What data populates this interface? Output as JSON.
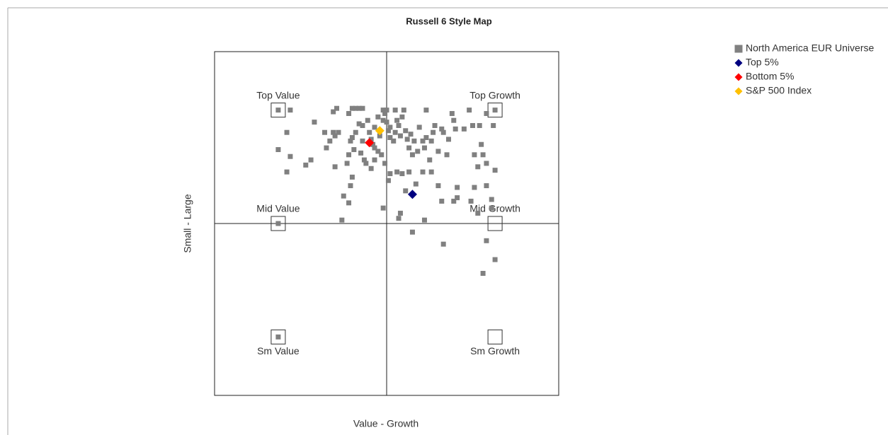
{
  "chart_data": {
    "type": "scatter",
    "title": "Russell 6 Style Map",
    "x_label": "Value - Growth",
    "y_label": "Small - Large",
    "xlim": [
      -1,
      1
    ],
    "ylim": [
      -1,
      1
    ],
    "legend": "top-right",
    "style_boxes": [
      {
        "label": "Top Value",
        "x": -0.63,
        "y": 0.66
      },
      {
        "label": "Top Growth",
        "x": 0.63,
        "y": 0.66
      },
      {
        "label": "Mid Value",
        "x": -0.63,
        "y": 0
      },
      {
        "label": "Mid Growth",
        "x": 0.63,
        "y": 0
      },
      {
        "label": "Sm Value",
        "x": -0.63,
        "y": -0.66
      },
      {
        "label": "Sm Growth",
        "x": 0.63,
        "y": -0.66
      }
    ],
    "series": [
      {
        "name": "North America EUR Universe",
        "color": "#808080",
        "marker": "square",
        "x": [
          -0.63,
          -0.56,
          -0.31,
          -0.29,
          -0.2,
          -0.18,
          -0.16,
          -0.14,
          -0.22,
          -0.02,
          0.0,
          0.05,
          0.1,
          0.23,
          0.38,
          0.48,
          0.63,
          0.58,
          0.62,
          -0.42,
          -0.58,
          -0.36,
          -0.31,
          -0.28,
          -0.33,
          -0.35,
          -0.3,
          -0.63,
          -0.56,
          -0.47,
          -0.44,
          -0.58,
          -0.3,
          -0.22,
          -0.21,
          -0.2,
          -0.18,
          -0.16,
          -0.14,
          -0.11,
          -0.1,
          -0.09,
          -0.07,
          -0.07,
          -0.05,
          -0.05,
          -0.04,
          -0.02,
          -0.01,
          0.0,
          0.01,
          0.02,
          0.02,
          0.04,
          0.05,
          0.06,
          0.07,
          0.08,
          0.09,
          0.11,
          0.12,
          0.13,
          0.14,
          0.15,
          0.16,
          0.18,
          0.19,
          0.21,
          0.22,
          0.23,
          0.25,
          0.26,
          0.27,
          0.28,
          0.3,
          0.32,
          0.33,
          0.35,
          0.36,
          0.39,
          0.4,
          0.45,
          0.5,
          0.51,
          0.54,
          0.55,
          0.56,
          0.58,
          0.53,
          0.63,
          0.51,
          0.58,
          0.49,
          0.61,
          0.61,
          0.53,
          0.58,
          0.63,
          0.56,
          0.33,
          0.15,
          0.07,
          0.22,
          0.08,
          -0.02,
          -0.26,
          -0.25,
          -0.21,
          -0.22,
          -0.2,
          -0.23,
          -0.12,
          -0.09,
          -0.01,
          0.01,
          0.02,
          0.06,
          0.09,
          0.13,
          0.17,
          0.21,
          0.26,
          0.32,
          0.39,
          0.41,
          0.41,
          0.3,
          0.11,
          -0.19,
          -0.15,
          -0.13,
          -0.03,
          -0.08,
          -0.14,
          -0.07,
          -0.63,
          -0.63
        ],
        "y": [
          0.66,
          0.66,
          0.65,
          0.67,
          0.67,
          0.67,
          0.67,
          0.67,
          0.64,
          0.66,
          0.66,
          0.66,
          0.66,
          0.66,
          0.64,
          0.66,
          0.66,
          0.64,
          0.57,
          0.59,
          0.53,
          0.53,
          0.53,
          0.53,
          0.48,
          0.44,
          0.51,
          0.43,
          0.39,
          0.34,
          0.37,
          0.3,
          0.33,
          0.4,
          0.48,
          0.5,
          0.53,
          0.58,
          0.57,
          0.6,
          0.53,
          0.49,
          0.56,
          0.44,
          0.42,
          0.62,
          0.51,
          0.6,
          0.64,
          0.59,
          0.54,
          0.5,
          0.56,
          0.48,
          0.53,
          0.6,
          0.57,
          0.51,
          0.62,
          0.54,
          0.49,
          0.44,
          0.52,
          0.4,
          0.48,
          0.42,
          0.56,
          0.48,
          0.44,
          0.5,
          0.37,
          0.48,
          0.53,
          0.57,
          0.42,
          0.55,
          0.53,
          0.4,
          0.49,
          0.6,
          0.55,
          0.55,
          0.57,
          0.4,
          0.57,
          0.46,
          0.4,
          0.35,
          0.33,
          0.31,
          0.21,
          0.22,
          0.13,
          0.14,
          0.09,
          0.06,
          -0.1,
          -0.21,
          -0.29,
          -0.12,
          -0.05,
          0.03,
          0.02,
          0.06,
          0.09,
          0.02,
          0.16,
          0.22,
          0.12,
          0.27,
          0.35,
          0.35,
          0.32,
          0.35,
          0.25,
          0.29,
          0.3,
          0.29,
          0.3,
          0.23,
          0.3,
          0.3,
          0.13,
          0.13,
          0.15,
          0.21,
          0.22,
          0.19,
          0.43,
          0.41,
          0.37,
          0.4,
          0.46,
          0.48,
          0.37,
          0,
          -0.66
        ]
      },
      {
        "name": "Top 5%",
        "color": "#000080",
        "marker": "diamond",
        "x": [
          0.15
        ],
        "y": [
          0.17
        ]
      },
      {
        "name": "Bottom 5%",
        "color": "#ff0000",
        "marker": "diamond",
        "x": [
          -0.1
        ],
        "y": [
          0.47
        ]
      },
      {
        "name": "S&P 500 Index",
        "color": "#ffc000",
        "marker": "diamond",
        "x": [
          -0.04
        ],
        "y": [
          0.54
        ]
      }
    ]
  }
}
